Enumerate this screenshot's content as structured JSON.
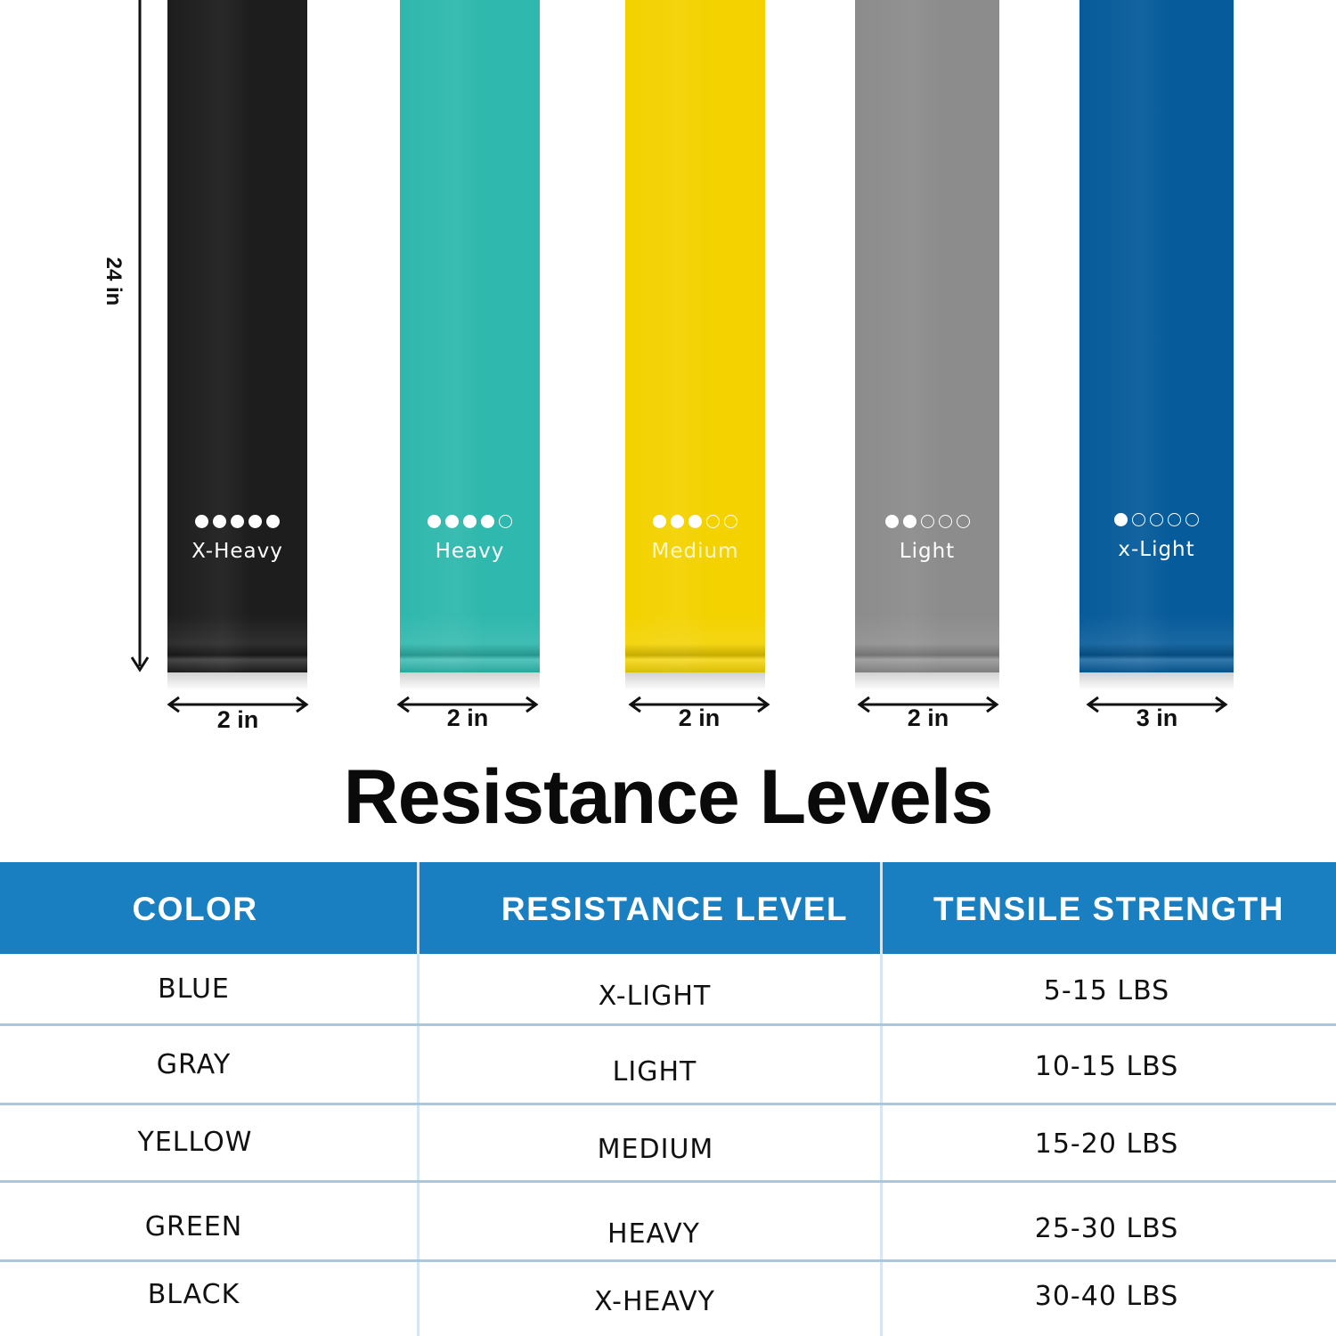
{
  "bands": [
    {
      "color": "#1d1d1d",
      "label": "X-Heavy",
      "filled": 5,
      "total": 5,
      "width_label": "2 in"
    },
    {
      "color": "#2fb8ad",
      "label": "Heavy",
      "filled": 4,
      "total": 5,
      "width_label": "2 in"
    },
    {
      "color": "#f3d200",
      "label": "Medium",
      "filled": 3,
      "total": 5,
      "width_label": "2 in"
    },
    {
      "color": "#8c8c8c",
      "label": "Light",
      "filled": 2,
      "total": 5,
      "width_label": "2 in"
    },
    {
      "color": "#065b9a",
      "label": "x-Light",
      "filled": 1,
      "total": 5,
      "width_label": "3 in"
    }
  ],
  "length_label": "24 in",
  "title": "Resistance Levels",
  "table": {
    "header_color": "#1a7fc0",
    "columns": [
      "COLOR",
      "RESISTANCE LEVEL",
      "TENSILE STRENGTH"
    ],
    "rows": [
      [
        "BLUE",
        "X-LIGHT",
        "5-15 LBS"
      ],
      [
        "GRAY",
        "LIGHT",
        "10-15 LBS"
      ],
      [
        "YELLOW",
        "MEDIUM",
        "15-20 LBS"
      ],
      [
        "GREEN",
        "HEAVY",
        "25-30 LBS"
      ],
      [
        "BLACK",
        "X-HEAVY",
        "30-40 LBS"
      ]
    ]
  }
}
